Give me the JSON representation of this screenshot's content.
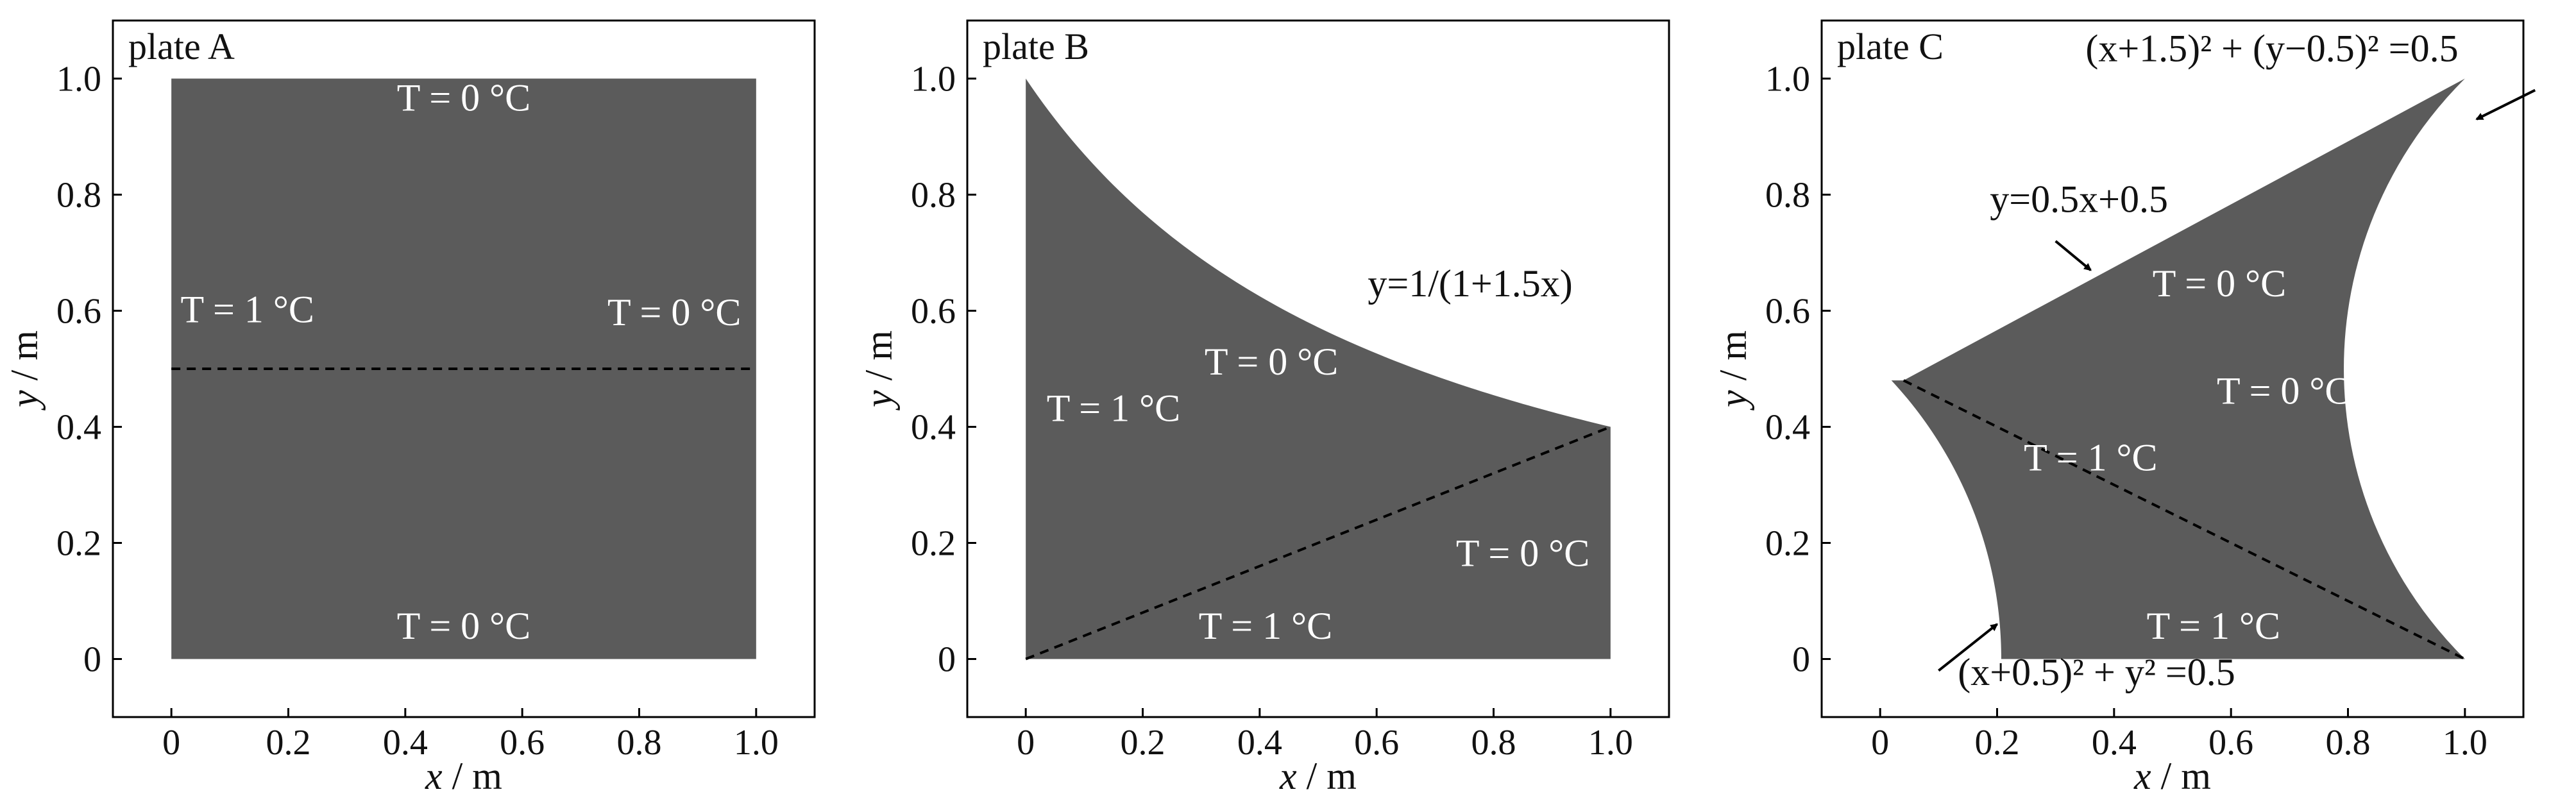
{
  "colors": {
    "plate_fill": "#5b5b5b",
    "frame": "#000000",
    "dashed_line": "#000000",
    "annotation_inside": "#ffffff",
    "annotation_outside": "#111111"
  },
  "plates": [
    {
      "id": "A",
      "title": "plate A",
      "xlabel": "x / m",
      "ylabel": "y / m",
      "xlim": [
        -0.1,
        1.1
      ],
      "ylim": [
        -0.1,
        1.1
      ],
      "xticks": [
        "0",
        "0.2",
        "0.4",
        "0.6",
        "0.8",
        "1.0"
      ],
      "yticks": [
        "0",
        "0.2",
        "0.4",
        "0.6",
        "0.8",
        "1.0"
      ],
      "boundary": {
        "type": "square",
        "description": "unit square 0 ≤ x ≤ 1, 0 ≤ y ≤ 1"
      },
      "dashed_line": {
        "from": [
          0,
          0.5
        ],
        "to": [
          1,
          0.5
        ]
      },
      "annotations": [
        {
          "text": "T = 0 °C",
          "at": [
            0.5,
            0.945
          ],
          "inside": true
        },
        {
          "text": "T = 1 °C",
          "at": [
            0.13,
            0.58
          ],
          "inside": true
        },
        {
          "text": "T = 0 °C",
          "at": [
            0.86,
            0.575
          ],
          "inside": true
        },
        {
          "text": "T = 0 °C",
          "at": [
            0.5,
            0.035
          ],
          "inside": true
        }
      ]
    },
    {
      "id": "B",
      "title": "plate B",
      "xlabel": "x / m",
      "ylabel": "y / m",
      "xlim": [
        -0.1,
        1.1
      ],
      "ylim": [
        -0.1,
        1.1
      ],
      "xticks": [
        "0",
        "0.2",
        "0.4",
        "0.6",
        "0.8",
        "1.0"
      ],
      "yticks": [
        "0",
        "0.2",
        "0.4",
        "0.6",
        "0.8",
        "1.0"
      ],
      "boundary": {
        "type": "under_curve",
        "curve": "y = 1/(1+1.5x)",
        "x_range": [
          0,
          1
        ]
      },
      "dashed_line": {
        "from": [
          0,
          0
        ],
        "to": [
          1,
          0.4
        ]
      },
      "annotations": [
        {
          "text": "y=1/(1+1.5x)",
          "at": [
            0.76,
            0.625
          ],
          "inside": false
        },
        {
          "text": "T = 0 °C",
          "at": [
            0.42,
            0.49
          ],
          "inside": true
        },
        {
          "text": "T = 1 °C",
          "at": [
            0.15,
            0.41
          ],
          "inside": true
        },
        {
          "text": "T = 0 °C",
          "at": [
            0.85,
            0.16
          ],
          "inside": true
        },
        {
          "text": "T = 1 °C",
          "at": [
            0.41,
            0.035
          ],
          "inside": true
        }
      ]
    },
    {
      "id": "C",
      "title": "plate C",
      "xlabel": "x / m",
      "ylabel": "y / m",
      "xlim": [
        -0.1,
        1.1
      ],
      "ylim": [
        -0.1,
        1.1
      ],
      "xticks": [
        "0",
        "0.2",
        "0.4",
        "0.6",
        "0.8",
        "1.0"
      ],
      "yticks": [
        "0",
        "0.2",
        "0.4",
        "0.6",
        "0.8",
        "1.0"
      ],
      "boundary": {
        "type": "curved_wedge",
        "top_line": "y = 0.5x + 0.5",
        "right_arc": "(x+1.5)^2 + (y-0.5)^2 = 0.5",
        "left_arc": "(x+0.5)^2 + y^2 = 0.5",
        "bottom": "y = 0"
      },
      "dashed_line": {
        "from": [
          0.04,
          0.48
        ],
        "to": [
          1,
          0
        ]
      },
      "annotations": [
        {
          "text": "(x+1.5)² + (y−0.5)² =0.5",
          "at": [
            0.67,
            1.03
          ],
          "inside": false
        },
        {
          "text": "y=0.5x+0.5",
          "at": [
            0.34,
            0.77
          ],
          "inside": false
        },
        {
          "text": "T = 0 °C",
          "at": [
            0.58,
            0.625
          ],
          "inside": true
        },
        {
          "text": "T = 0 °C",
          "at": [
            0.69,
            0.44
          ],
          "inside": true
        },
        {
          "text": "T = 1 °C",
          "at": [
            0.36,
            0.325
          ],
          "inside": true
        },
        {
          "text": "T = 1 °C",
          "at": [
            0.57,
            0.035
          ],
          "inside": true
        },
        {
          "text": "(x+0.5)² + y² =0.5",
          "at": [
            0.37,
            -0.045
          ],
          "inside": false
        }
      ],
      "arrows": [
        {
          "label": "right_arc",
          "from": [
            1.12,
            0.98
          ],
          "to": [
            1.02,
            0.93
          ]
        },
        {
          "label": "top_line",
          "from": [
            0.3,
            0.72
          ],
          "to": [
            0.36,
            0.67
          ]
        },
        {
          "label": "left_arc",
          "from": [
            0.1,
            -0.02
          ],
          "to": [
            0.2,
            0.06
          ]
        }
      ]
    }
  ]
}
